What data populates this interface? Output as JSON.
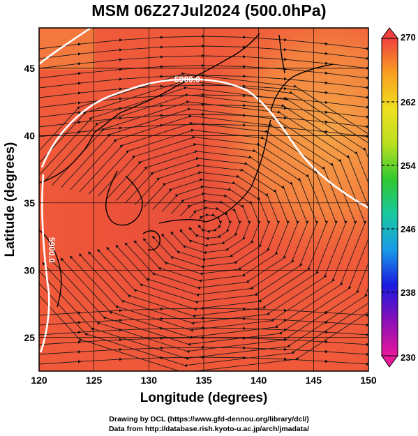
{
  "title": "MSM 06Z27Jul2024 (500.0hPa)",
  "map": {
    "lon_range": [
      120,
      150
    ],
    "lat_range": [
      22.5,
      48
    ],
    "x_ticks": [
      120,
      125,
      130,
      135,
      140,
      145,
      150
    ],
    "y_ticks": [
      25,
      30,
      35,
      40,
      45
    ],
    "xlabel": "Longitude (degrees)",
    "ylabel": "Latitude  (degrees)",
    "field_colors": {
      "low": "#ea4a3a",
      "mid": "#f0503a",
      "high": "#f27a3c",
      "warm_east": "#f59a42"
    },
    "contour_color": "#ffffff",
    "contours": [
      {
        "label": "5900.0",
        "label_lon": 134.0,
        "label_lat": 45.3
      },
      {
        "label": "5900.0",
        "label_lon": 120.7,
        "label_lat": 32.6
      }
    ]
  },
  "colorbar": {
    "ticks": [
      230,
      238,
      246,
      254,
      262,
      270
    ],
    "min": 230,
    "max": 270,
    "colors": [
      "#e8189a",
      "#8a10b8",
      "#1a1ae0",
      "#1a9ae8",
      "#18c8a0",
      "#30c830",
      "#b8e020",
      "#f0e020",
      "#f8a020",
      "#f04040"
    ]
  },
  "credits": {
    "line1": "Drawing by DCL (https://www.gfd-dennou.org/library/dcl/)",
    "line2": "Data from http://database.rish.kyoto-u.ac.jp/arch/jmadata/"
  }
}
